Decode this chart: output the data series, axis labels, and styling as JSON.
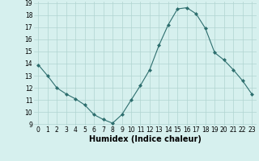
{
  "x": [
    0,
    1,
    2,
    3,
    4,
    5,
    6,
    7,
    8,
    9,
    10,
    11,
    12,
    13,
    14,
    15,
    16,
    17,
    18,
    19,
    20,
    21,
    22,
    23
  ],
  "y": [
    13.9,
    13.0,
    12.0,
    11.5,
    11.1,
    10.6,
    9.8,
    9.4,
    9.1,
    9.8,
    11.0,
    12.2,
    13.5,
    15.5,
    17.2,
    18.5,
    18.6,
    18.1,
    16.9,
    14.9,
    14.3,
    13.5,
    12.6,
    11.5
  ],
  "line_color": "#2d6e6e",
  "marker": "D",
  "marker_size": 2,
  "bg_color": "#d6f0ee",
  "grid_color": "#b0d4d0",
  "xlabel": "Humidex (Indice chaleur)",
  "ylim": [
    9,
    19
  ],
  "xlim": [
    -0.5,
    23.5
  ],
  "yticks": [
    9,
    10,
    11,
    12,
    13,
    14,
    15,
    16,
    17,
    18,
    19
  ],
  "xticks": [
    0,
    1,
    2,
    3,
    4,
    5,
    6,
    7,
    8,
    9,
    10,
    11,
    12,
    13,
    14,
    15,
    16,
    17,
    18,
    19,
    20,
    21,
    22,
    23
  ],
  "tick_fontsize": 5.5,
  "xlabel_fontsize": 7.0
}
